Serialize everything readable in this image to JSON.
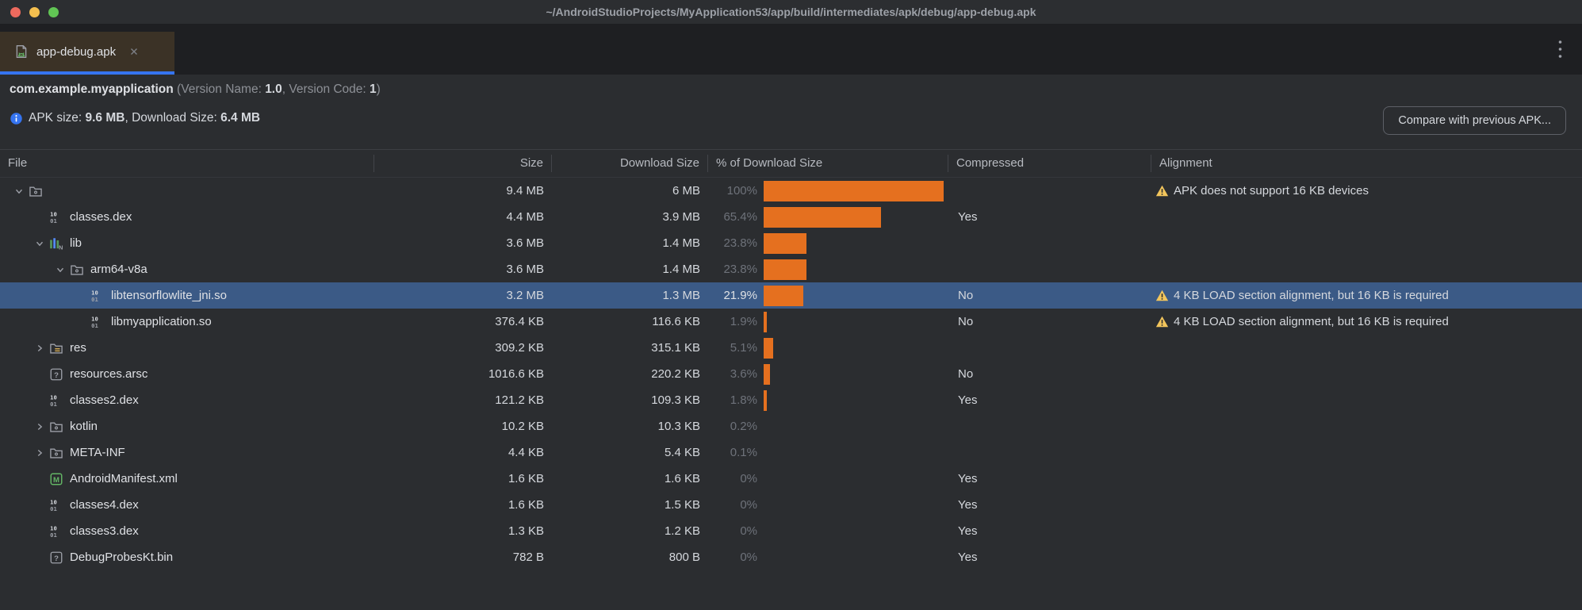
{
  "window": {
    "title": "~/AndroidStudioProjects/MyApplication53/app/build/intermediates/apk/debug/app-debug.apk"
  },
  "tab": {
    "label": "app-debug.apk"
  },
  "info": {
    "package_name": "com.example.myapplication",
    "version_prefix": " (Version Name: ",
    "version_name": "1.0",
    "version_mid": ", Version Code: ",
    "version_code": "1",
    "version_suffix": ")",
    "apk_label": "APK size: ",
    "apk_size": "9.6 MB",
    "download_label": ", Download Size: ",
    "download_size": "6.4 MB"
  },
  "compare_button_label": "Compare with previous APK...",
  "table": {
    "columns": [
      "File",
      "Size",
      "Download Size",
      "% of Download Size",
      "Compressed",
      "Alignment"
    ],
    "rows": [
      {
        "name": "",
        "icon": "folder",
        "indent": 0,
        "chevron": "down",
        "size": "9.4 MB",
        "download": "6 MB",
        "pct": "100%",
        "pct_val": 100,
        "compressed": "",
        "alignment": "APK does not support 16 KB devices",
        "selected": false
      },
      {
        "name": "classes.dex",
        "icon": "dex",
        "indent": 1,
        "chevron": "none",
        "size": "4.4 MB",
        "download": "3.9 MB",
        "pct": "65.4%",
        "pct_val": 65.4,
        "compressed": "Yes",
        "alignment": "",
        "selected": false
      },
      {
        "name": "lib",
        "icon": "lib",
        "indent": 1,
        "chevron": "down",
        "size": "3.6 MB",
        "download": "1.4 MB",
        "pct": "23.8%",
        "pct_val": 23.8,
        "compressed": "",
        "alignment": "",
        "selected": false
      },
      {
        "name": "arm64-v8a",
        "icon": "folder",
        "indent": 2,
        "chevron": "down",
        "size": "3.6 MB",
        "download": "1.4 MB",
        "pct": "23.8%",
        "pct_val": 23.8,
        "compressed": "",
        "alignment": "",
        "selected": false
      },
      {
        "name": "libtensorflowlite_jni.so",
        "icon": "dex",
        "indent": 3,
        "chevron": "none",
        "size": "3.2 MB",
        "download": "1.3 MB",
        "pct": "21.9%",
        "pct_val": 21.9,
        "compressed": "No",
        "alignment": "4 KB LOAD section alignment, but 16 KB is required",
        "selected": true
      },
      {
        "name": "libmyapplication.so",
        "icon": "dex",
        "indent": 3,
        "chevron": "none",
        "size": "376.4 KB",
        "download": "116.6 KB",
        "pct": "1.9%",
        "pct_val": 1.9,
        "compressed": "No",
        "alignment": "4 KB LOAD section alignment, but 16 KB is required",
        "selected": false
      },
      {
        "name": "res",
        "icon": "res-folder",
        "indent": 1,
        "chevron": "right",
        "size": "309.2 KB",
        "download": "315.1 KB",
        "pct": "5.1%",
        "pct_val": 5.1,
        "compressed": "",
        "alignment": "",
        "selected": false
      },
      {
        "name": "resources.arsc",
        "icon": "unknown",
        "indent": 1,
        "chevron": "none",
        "size": "1016.6 KB",
        "download": "220.2 KB",
        "pct": "3.6%",
        "pct_val": 3.6,
        "compressed": "No",
        "alignment": "",
        "selected": false
      },
      {
        "name": "classes2.dex",
        "icon": "dex",
        "indent": 1,
        "chevron": "none",
        "size": "121.2 KB",
        "download": "109.3 KB",
        "pct": "1.8%",
        "pct_val": 1.8,
        "compressed": "Yes",
        "alignment": "",
        "selected": false
      },
      {
        "name": "kotlin",
        "icon": "folder",
        "indent": 1,
        "chevron": "right",
        "size": "10.2 KB",
        "download": "10.3 KB",
        "pct": "0.2%",
        "pct_val": 0.2,
        "compressed": "",
        "alignment": "",
        "selected": false
      },
      {
        "name": "META-INF",
        "icon": "folder",
        "indent": 1,
        "chevron": "right",
        "size": "4.4 KB",
        "download": "5.4 KB",
        "pct": "0.1%",
        "pct_val": 0.1,
        "compressed": "",
        "alignment": "",
        "selected": false
      },
      {
        "name": "AndroidManifest.xml",
        "icon": "manifest",
        "indent": 1,
        "chevron": "none",
        "size": "1.6 KB",
        "download": "1.6 KB",
        "pct": "0%",
        "pct_val": 0,
        "compressed": "Yes",
        "alignment": "",
        "selected": false
      },
      {
        "name": "classes4.dex",
        "icon": "dex",
        "indent": 1,
        "chevron": "none",
        "size": "1.6 KB",
        "download": "1.5 KB",
        "pct": "0%",
        "pct_val": 0,
        "compressed": "Yes",
        "alignment": "",
        "selected": false
      },
      {
        "name": "classes3.dex",
        "icon": "dex",
        "indent": 1,
        "chevron": "none",
        "size": "1.3 KB",
        "download": "1.2 KB",
        "pct": "0%",
        "pct_val": 0,
        "compressed": "Yes",
        "alignment": "",
        "selected": false
      },
      {
        "name": "DebugProbesKt.bin",
        "icon": "unknown",
        "indent": 1,
        "chevron": "none",
        "size": "782 B",
        "download": "800 B",
        "pct": "0%",
        "pct_val": 0,
        "compressed": "Yes",
        "alignment": "",
        "selected": false
      }
    ]
  },
  "colors": {
    "accent_blue": "#3574f0",
    "bar_orange": "#e5701f",
    "selection": "#3b5a86",
    "warning_yellow": "#f2c55c",
    "tab_brown": "#3b3226",
    "traffic_red": "#ed6a5e",
    "traffic_yellow": "#f4bf4f",
    "traffic_green": "#61c554",
    "icon_gray": "#9da0a8",
    "manifest_green": "#63b565"
  }
}
